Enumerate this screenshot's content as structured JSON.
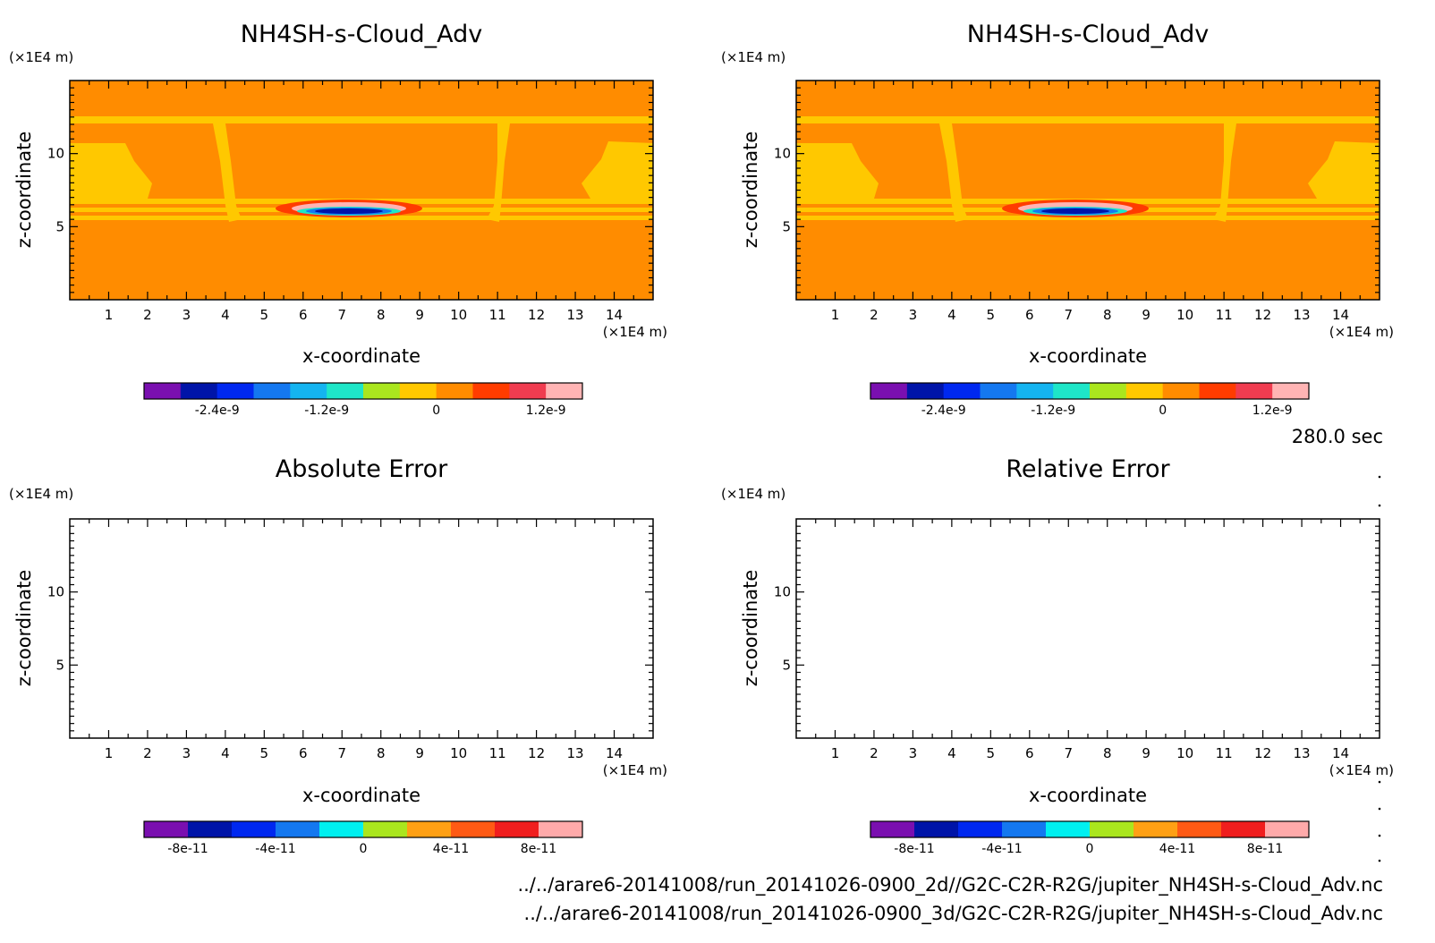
{
  "colorbars": {
    "top": {
      "colors": [
        "#7a0fb0",
        "#0014a8",
        "#0028f0",
        "#1478f0",
        "#14b4f0",
        "#1ee6c8",
        "#aae61e",
        "#ffc800",
        "#ff8c00",
        "#ff3c00",
        "#f03c50",
        "#ffb4b4"
      ],
      "labels": [
        "-2.4e-9",
        "-1.2e-9",
        "0",
        "1.2e-9"
      ],
      "label_after_bin": [
        2,
        5,
        8,
        11
      ]
    },
    "bottom": {
      "colors": [
        "#7a0fb0",
        "#0014a8",
        "#0028f0",
        "#1478f0",
        "#00f0f0",
        "#aae61e",
        "#ffa014",
        "#ff5a14",
        "#f01e1e",
        "#ffaaaa"
      ],
      "labels": [
        "-8e-11",
        "-4e-11",
        "0",
        "4e-11",
        "8e-11"
      ],
      "label_after_bin": [
        1,
        3,
        5,
        7,
        9
      ]
    }
  },
  "chart_data": [
    {
      "type": "heatmap",
      "title": "NH4SH-s-Cloud_Adv",
      "xlabel": "x-coordinate",
      "ylabel": "z-coordinate",
      "x_unit": "(×1E4 m)",
      "y_unit": "(×1E4 m)",
      "xlim": [
        0,
        15
      ],
      "ylim": [
        0,
        15
      ],
      "xticks": [
        "1",
        "2",
        "3",
        "4",
        "5",
        "6",
        "7",
        "8",
        "9",
        "10",
        "11",
        "12",
        "13",
        "14"
      ],
      "yticks": [
        "5",
        "10"
      ],
      "colorbar": "top",
      "background": "#ff8c00",
      "features": [
        {
          "region": "upper inversion band",
          "z_range": [
            12.2,
            12.6
          ],
          "color": "#ffc800"
        },
        {
          "region": "left upper cloud wedge",
          "x_range": [
            0,
            2
          ],
          "z_range": [
            7,
            10
          ],
          "color": "#ffc800"
        },
        {
          "region": "right upper cloud wedge",
          "x_range": [
            13,
            15
          ],
          "z_range": [
            7,
            10
          ],
          "color": "#ffc800"
        },
        {
          "region": "left updraft column",
          "x_range": [
            3.9,
            4.2
          ],
          "z_range": [
            6,
            12
          ],
          "color": "#ffc800"
        },
        {
          "region": "right updraft column",
          "x_range": [
            10.9,
            11.2
          ],
          "z_range": [
            6,
            12
          ],
          "color": "#ffc800"
        },
        {
          "region": "mid-level bands",
          "z_values": [
            5.7,
            6.3,
            7.0
          ],
          "color": "#ffc800"
        },
        {
          "region": "central anomaly positive lobe",
          "x_range": [
            5.7,
            8.9
          ],
          "z_range": [
            6.4,
            6.9
          ],
          "value": 1.2e-09,
          "color": "#ff3c00"
        },
        {
          "region": "central anomaly negative core",
          "x_range": [
            6.3,
            8.3
          ],
          "z_range": [
            6.1,
            6.4
          ],
          "value": -2.4e-09,
          "color": "#0014a8"
        }
      ]
    },
    {
      "type": "heatmap",
      "title": "NH4SH-s-Cloud_Adv",
      "xlabel": "x-coordinate",
      "ylabel": "z-coordinate",
      "x_unit": "(×1E4 m)",
      "y_unit": "(×1E4 m)",
      "xlim": [
        0,
        15
      ],
      "ylim": [
        0,
        15
      ],
      "xticks": [
        "1",
        "2",
        "3",
        "4",
        "5",
        "6",
        "7",
        "8",
        "9",
        "10",
        "11",
        "12",
        "13",
        "14"
      ],
      "yticks": [
        "5",
        "10"
      ],
      "colorbar": "top",
      "background": "#ff8c00",
      "features": [
        {
          "region": "upper inversion band",
          "z_range": [
            12.2,
            12.6
          ],
          "color": "#ffc800"
        },
        {
          "region": "left upper cloud wedge",
          "x_range": [
            0,
            2
          ],
          "z_range": [
            7,
            10
          ],
          "color": "#ffc800"
        },
        {
          "region": "right upper cloud wedge",
          "x_range": [
            13,
            15
          ],
          "z_range": [
            7,
            10
          ],
          "color": "#ffc800"
        },
        {
          "region": "left updraft column",
          "x_range": [
            3.9,
            4.2
          ],
          "z_range": [
            6,
            12
          ],
          "color": "#ffc800"
        },
        {
          "region": "right updraft column",
          "x_range": [
            10.9,
            11.2
          ],
          "z_range": [
            6,
            12
          ],
          "color": "#ffc800"
        },
        {
          "region": "mid-level bands",
          "z_values": [
            5.7,
            6.3,
            7.0
          ],
          "color": "#ffc800"
        },
        {
          "region": "central anomaly positive lobe",
          "x_range": [
            5.7,
            8.9
          ],
          "z_range": [
            6.4,
            6.9
          ],
          "value": 1.2e-09,
          "color": "#ff3c00"
        },
        {
          "region": "central anomaly negative core",
          "x_range": [
            6.3,
            8.3
          ],
          "z_range": [
            6.1,
            6.4
          ],
          "value": -2.4e-09,
          "color": "#0014a8"
        }
      ]
    },
    {
      "type": "heatmap",
      "title": "Absolute Error",
      "xlabel": "x-coordinate",
      "ylabel": "z-coordinate",
      "x_unit": "(×1E4 m)",
      "y_unit": "(×1E4 m)",
      "xlim": [
        0,
        15
      ],
      "ylim": [
        0,
        15
      ],
      "xticks": [
        "1",
        "2",
        "3",
        "4",
        "5",
        "6",
        "7",
        "8",
        "9",
        "10",
        "11",
        "12",
        "13",
        "14"
      ],
      "yticks": [
        "5",
        "10"
      ],
      "colorbar": "bottom",
      "background": "#ffffff",
      "features": []
    },
    {
      "type": "heatmap",
      "title": "Relative Error",
      "xlabel": "x-coordinate",
      "ylabel": "z-coordinate",
      "x_unit": "(×1E4 m)",
      "y_unit": "(×1E4 m)",
      "xlim": [
        0,
        15
      ],
      "ylim": [
        0,
        15
      ],
      "xticks": [
        "1",
        "2",
        "3",
        "4",
        "5",
        "6",
        "7",
        "8",
        "9",
        "10",
        "11",
        "12",
        "13",
        "14"
      ],
      "yticks": [
        "5",
        "10"
      ],
      "colorbar": "bottom",
      "background": "#ffffff",
      "features": []
    }
  ],
  "time_label": "280.0 sec",
  "file_paths": [
    "../../arare6-20141008/run_20141026-0900_2d//G2C-C2R-R2G/jupiter_NH4SH-s-Cloud_Adv.nc",
    "../../arare6-20141008/run_20141026-0900_3d/G2C-C2R-R2G/jupiter_NH4SH-s-Cloud_Adv.nc"
  ]
}
